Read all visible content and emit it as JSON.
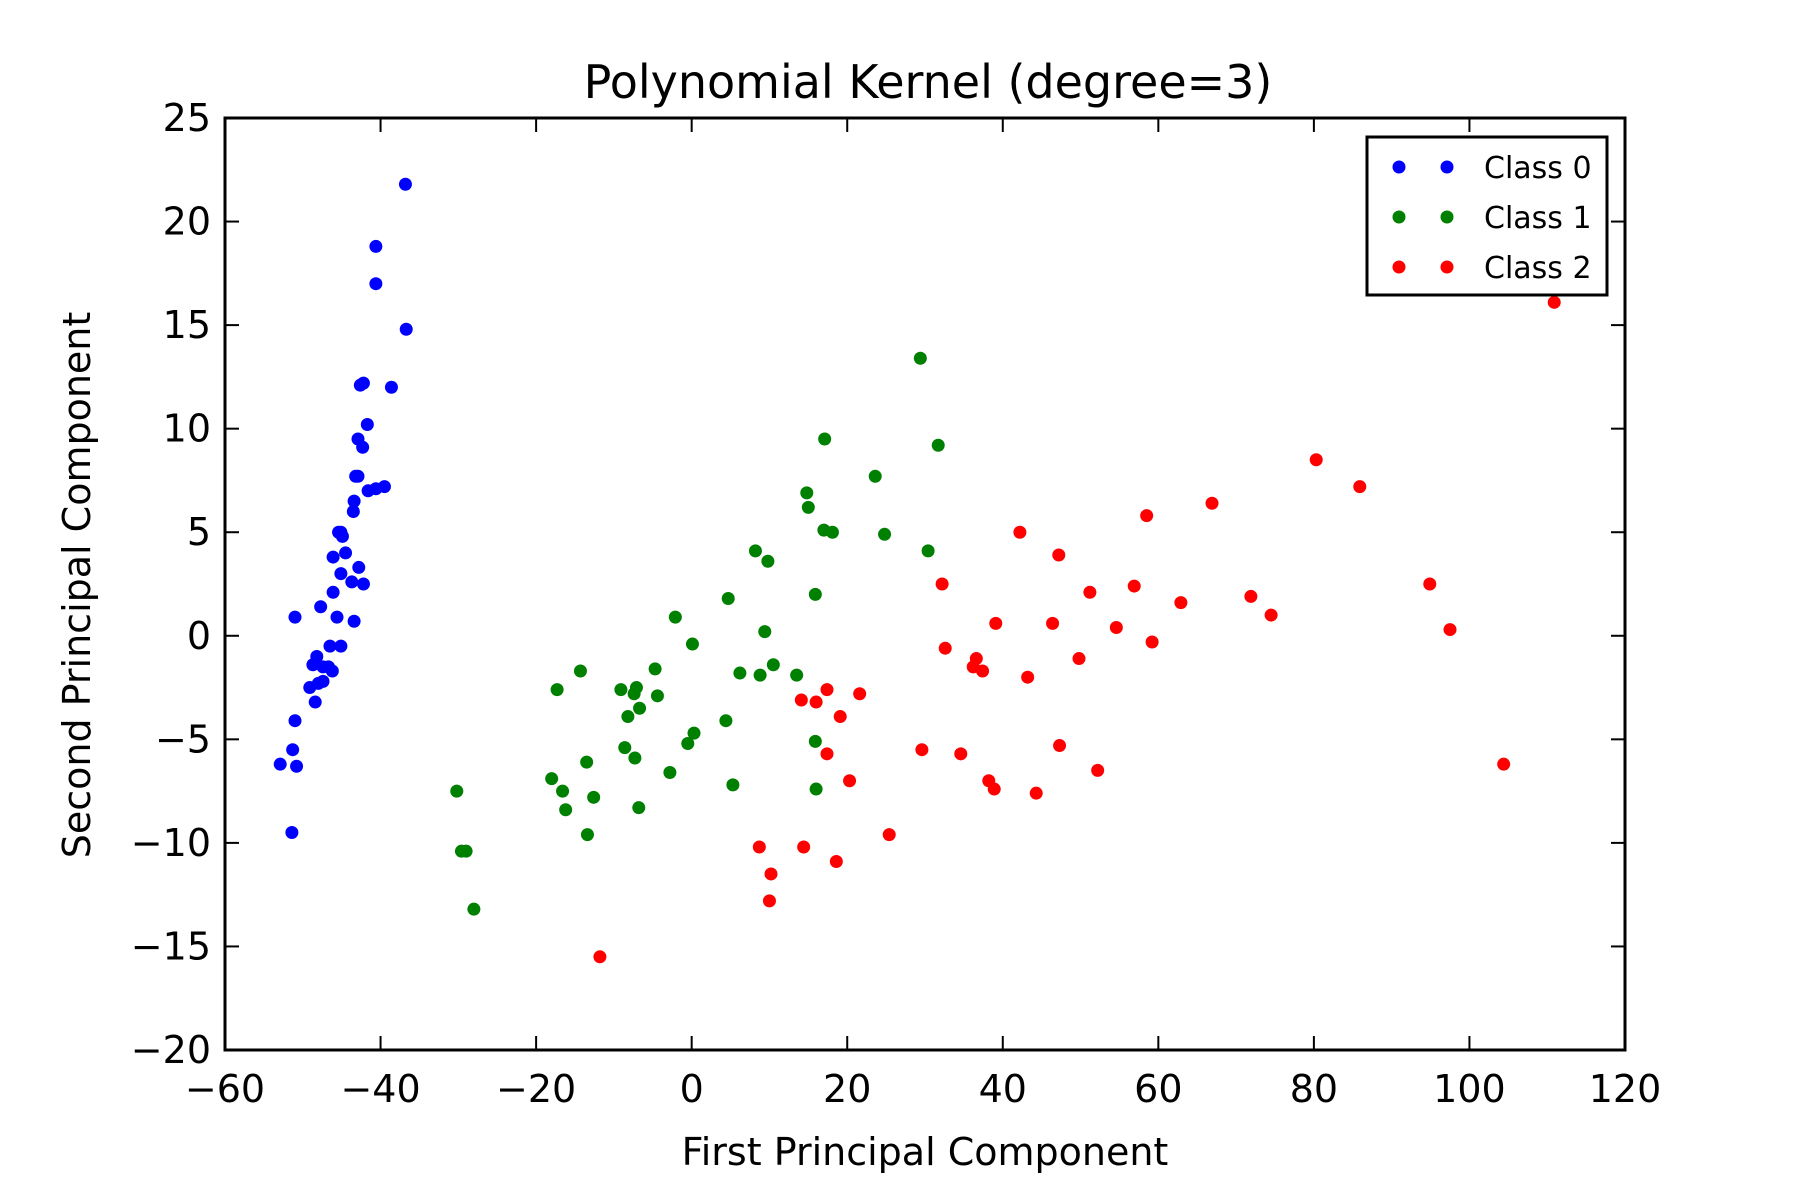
{
  "chart_data": {
    "type": "scatter",
    "title": "Polynomial Kernel (degree=3)",
    "xlabel": "First Principal Component",
    "ylabel": "Second Principal Component",
    "xlim": [
      -60,
      120
    ],
    "ylim": [
      -20,
      25
    ],
    "xticks": [
      -60,
      -40,
      -20,
      0,
      20,
      40,
      60,
      80,
      100,
      120
    ],
    "xtick_labels": [
      "−60",
      "−40",
      "−20",
      "0",
      "20",
      "40",
      "60",
      "80",
      "100",
      "120"
    ],
    "yticks": [
      -20,
      -15,
      -10,
      -5,
      0,
      5,
      10,
      15,
      20,
      25
    ],
    "ytick_labels": [
      "−20",
      "−15",
      "−10",
      "−5",
      "0",
      "5",
      "10",
      "15",
      "20",
      "25"
    ],
    "grid": false,
    "legend_position": "top-right",
    "series": [
      {
        "name": "Class 0",
        "color": "#0000ff",
        "x": [
          -36.8,
          -40.6,
          -40.6,
          -36.7,
          -38.6,
          -42.2,
          -42.6,
          -41.7,
          -42.9,
          -42.3,
          -42.9,
          -43.2,
          -40.6,
          -41.6,
          -39.5,
          -43.4,
          -43.5,
          -45.4,
          -44.9,
          -45.1,
          -44.5,
          -46.1,
          -42.8,
          -45.1,
          -43.7,
          -42.2,
          -46.1,
          -47.7,
          -45.6,
          -43.4,
          -51.0,
          -46.5,
          -45.1,
          -48.2,
          -47.4,
          -48.7,
          -46.7,
          -46.2,
          -47.4,
          -48.0,
          -49.1,
          -48.4,
          -51.0,
          -51.3,
          -52.9,
          -50.8,
          -51.4
        ],
        "y": [
          21.8,
          18.8,
          17.0,
          14.8,
          12.0,
          12.2,
          12.1,
          10.2,
          9.5,
          9.1,
          7.7,
          7.7,
          7.1,
          7.0,
          7.2,
          6.5,
          6.0,
          5.0,
          4.8,
          5.0,
          4.0,
          3.8,
          3.3,
          3.0,
          2.6,
          2.5,
          2.1,
          1.4,
          0.9,
          0.7,
          0.9,
          -0.5,
          -0.5,
          -1.0,
          -1.5,
          -1.4,
          -1.5,
          -1.7,
          -2.2,
          -2.3,
          -2.5,
          -3.2,
          -4.1,
          -5.5,
          -6.2,
          -6.3,
          -9.5
        ]
      },
      {
        "name": "Class 1",
        "color": "#008000",
        "x": [
          29.4,
          17.1,
          31.7,
          23.6,
          14.8,
          15.0,
          17.0,
          18.1,
          24.8,
          8.2,
          30.4,
          9.8,
          15.9,
          4.7,
          -2.1,
          9.4,
          0.1,
          -4.7,
          -14.3,
          6.2,
          10.5,
          8.8,
          13.5,
          -17.3,
          -9.1,
          -7.1,
          -7.4,
          -4.4,
          -6.7,
          -8.2,
          4.4,
          0.3,
          15.9,
          -0.5,
          -8.6,
          -13.5,
          -7.3,
          -2.8,
          -18.0,
          5.3,
          -16.6,
          16.0,
          -12.6,
          -6.8,
          -16.2,
          -13.4,
          -30.2,
          -29.6,
          -29.0,
          -28.0
        ],
        "y": [
          13.4,
          9.5,
          9.2,
          7.7,
          6.9,
          6.2,
          5.1,
          5.0,
          4.9,
          4.1,
          4.1,
          3.6,
          2.0,
          1.8,
          0.9,
          0.2,
          -0.4,
          -1.6,
          -1.7,
          -1.8,
          -1.4,
          -1.9,
          -1.9,
          -2.6,
          -2.6,
          -2.5,
          -2.8,
          -2.9,
          -3.5,
          -3.9,
          -4.1,
          -4.7,
          -5.1,
          -5.2,
          -5.4,
          -6.1,
          -5.9,
          -6.6,
          -6.9,
          -7.2,
          -7.5,
          -7.4,
          -7.8,
          -8.3,
          -8.4,
          -9.6,
          -7.5,
          -10.4,
          -10.4,
          -13.2
        ]
      },
      {
        "name": "Class 2",
        "color": "#ff0000",
        "x": [
          110.9,
          80.3,
          85.9,
          58.5,
          66.9,
          42.2,
          47.2,
          94.9,
          32.2,
          51.2,
          56.9,
          62.9,
          71.9,
          74.5,
          39.1,
          46.4,
          54.6,
          97.5,
          59.2,
          32.6,
          36.6,
          49.8,
          36.2,
          37.4,
          43.2,
          17.4,
          21.6,
          14.1,
          16.0,
          19.1,
          47.3,
          29.6,
          17.4,
          34.6,
          52.2,
          104.4,
          20.3,
          38.2,
          38.9,
          44.3,
          25.4,
          8.7,
          14.4,
          18.6,
          10.2,
          10.0,
          -11.8
        ],
        "y": [
          16.1,
          8.5,
          7.2,
          5.8,
          6.4,
          5.0,
          3.9,
          2.5,
          2.5,
          2.1,
          2.4,
          1.6,
          1.9,
          1.0,
          0.6,
          0.6,
          0.4,
          0.3,
          -0.3,
          -0.6,
          -1.1,
          -1.1,
          -1.5,
          -1.7,
          -2.0,
          -2.6,
          -2.8,
          -3.1,
          -3.2,
          -3.9,
          -5.3,
          -5.5,
          -5.7,
          -5.7,
          -6.5,
          -6.2,
          -7.0,
          -7.0,
          -7.4,
          -7.6,
          -9.6,
          -10.2,
          -10.2,
          -10.9,
          -11.5,
          -12.8,
          -15.5
        ]
      }
    ]
  }
}
